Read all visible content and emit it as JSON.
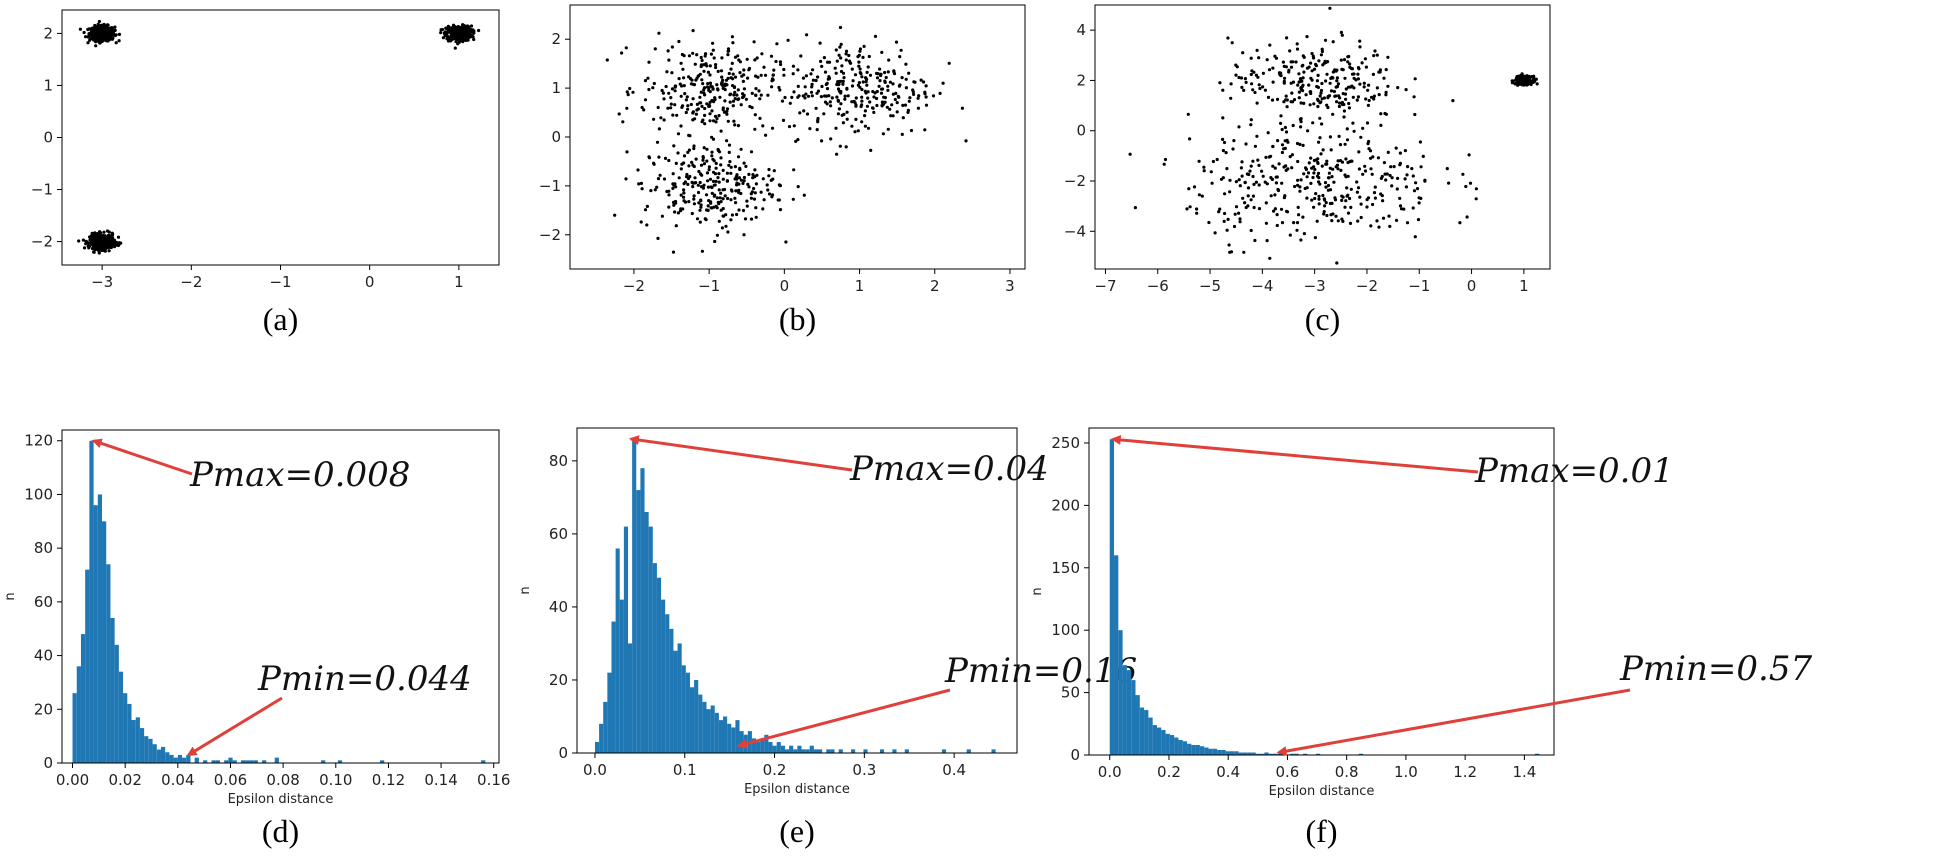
{
  "chart_data": [
    {
      "panel": "(a)",
      "type": "scatter",
      "xlim": [
        -3.45,
        1.45
      ],
      "ylim": [
        -2.45,
        2.45
      ],
      "xticks": [
        "−3",
        "−2",
        "−1",
        "0",
        "1"
      ],
      "xtick_values": [
        -3,
        -2,
        -1,
        0,
        1
      ],
      "yticks": [
        "−2",
        "−1",
        "0",
        "1",
        "2"
      ],
      "ytick_values": [
        -2,
        -1,
        0,
        1,
        2
      ],
      "point_color": "#000000",
      "clusters": [
        {
          "center": [
            -3.0,
            2.0
          ],
          "spread": 0.07,
          "count": 450
        },
        {
          "center": [
            1.0,
            2.0
          ],
          "spread": 0.07,
          "count": 450
        },
        {
          "center": [
            -3.0,
            -2.0
          ],
          "spread": 0.07,
          "count": 450
        }
      ]
    },
    {
      "panel": "(b)",
      "type": "scatter",
      "xlim": [
        -2.85,
        3.2
      ],
      "ylim": [
        -2.7,
        2.7
      ],
      "xticks": [
        "−2",
        "−1",
        "0",
        "1",
        "2",
        "3"
      ],
      "xtick_values": [
        -2,
        -1,
        0,
        1,
        2,
        3
      ],
      "yticks": [
        "−2",
        "−1",
        "0",
        "1",
        "2"
      ],
      "ytick_values": [
        -2,
        -1,
        0,
        1,
        2
      ],
      "point_color": "#000000",
      "clusters": [
        {
          "center": [
            -1.0,
            1.0
          ],
          "spread": 0.45,
          "count": 280
        },
        {
          "center": [
            1.0,
            1.0
          ],
          "spread": 0.5,
          "count": 280
        },
        {
          "center": [
            -1.0,
            -1.0
          ],
          "spread": 0.45,
          "count": 280
        }
      ]
    },
    {
      "panel": "(c)",
      "type": "scatter",
      "xlim": [
        -7.2,
        1.5
      ],
      "ylim": [
        -5.5,
        5.0
      ],
      "xticks": [
        "−7",
        "−6",
        "−5",
        "−4",
        "−3",
        "−2",
        "−1",
        "0",
        "1"
      ],
      "xtick_values": [
        -7,
        -6,
        -5,
        -4,
        -3,
        -2,
        -1,
        0,
        1
      ],
      "yticks": [
        "−4",
        "−2",
        "0",
        "2",
        "4"
      ],
      "ytick_values": [
        -4,
        -2,
        0,
        2,
        4
      ],
      "point_color": "#000000",
      "clusters": [
        {
          "center": [
            -3.0,
            2.0
          ],
          "spread": 0.8,
          "count": 260
        },
        {
          "center": [
            -3.0,
            -2.0
          ],
          "spread": 1.2,
          "count": 380
        },
        {
          "center": [
            1.0,
            2.0
          ],
          "spread": 0.08,
          "count": 300
        }
      ]
    },
    {
      "panel": "(d)",
      "type": "bar",
      "xlabel": "Epsilon distance",
      "ylabel": "n",
      "xlim": [
        -0.004,
        0.162
      ],
      "ylim": [
        0,
        124
      ],
      "bin_start": 0.0,
      "bin_width": 0.0016,
      "xticks": [
        "0.00",
        "0.02",
        "0.04",
        "0.06",
        "0.08",
        "0.10",
        "0.12",
        "0.14",
        "0.16"
      ],
      "xtick_values": [
        0,
        0.02,
        0.04,
        0.06,
        0.08,
        0.1,
        0.12,
        0.14,
        0.16
      ],
      "yticks": [
        "0",
        "20",
        "40",
        "60",
        "80",
        "100",
        "120"
      ],
      "ytick_values": [
        0,
        20,
        40,
        60,
        80,
        100,
        120
      ],
      "bar_color": "#1f77b4",
      "values": [
        26,
        36,
        48,
        72,
        120,
        96,
        100,
        90,
        74,
        54,
        44,
        34,
        26,
        22,
        16,
        17,
        13,
        10,
        9,
        7,
        5,
        6,
        4,
        3,
        2,
        3,
        2,
        3,
        0,
        2,
        0,
        1,
        0,
        1,
        1,
        0,
        1,
        2,
        1,
        0,
        1,
        1,
        1,
        1,
        0,
        1,
        0,
        0,
        2,
        0,
        0,
        0,
        0,
        0,
        0,
        0,
        0,
        0,
        0,
        1,
        0,
        0,
        0,
        1,
        0,
        0,
        0,
        0,
        0,
        0,
        0,
        0,
        0,
        1,
        0,
        0,
        0,
        0,
        0,
        0,
        0,
        0,
        0,
        0,
        0,
        0,
        0,
        0,
        0,
        0,
        0,
        0,
        0,
        0,
        0,
        0,
        0,
        1
      ],
      "annotations": [
        {
          "text": "Pmax=0.008",
          "x": 0.008,
          "y": 120
        },
        {
          "text": "Pmin=0.044",
          "x": 0.044,
          "y": 3
        }
      ]
    },
    {
      "panel": "(e)",
      "type": "bar",
      "xlabel": "Epsilon distance",
      "ylabel": "n",
      "xlim": [
        -0.02,
        0.47
      ],
      "ylim": [
        0,
        89
      ],
      "bin_start": 0.0,
      "bin_width": 0.0046,
      "xticks": [
        "0.0",
        "0.1",
        "0.2",
        "0.3",
        "0.4"
      ],
      "xtick_values": [
        0,
        0.1,
        0.2,
        0.3,
        0.4
      ],
      "yticks": [
        "0",
        "20",
        "40",
        "60",
        "80"
      ],
      "ytick_values": [
        0,
        20,
        40,
        60,
        80
      ],
      "bar_color": "#1f77b4",
      "values": [
        3,
        8,
        14,
        22,
        36,
        56,
        42,
        62,
        30,
        86,
        72,
        78,
        66,
        62,
        52,
        48,
        42,
        38,
        34,
        28,
        30,
        24,
        22,
        18,
        20,
        16,
        14,
        12,
        13,
        11,
        9,
        10,
        8,
        7,
        9,
        6,
        5,
        6,
        4,
        3,
        4,
        5,
        3,
        2,
        3,
        2,
        1,
        2,
        1,
        2,
        1,
        1,
        2,
        1,
        1,
        0,
        1,
        1,
        0,
        1,
        0,
        0,
        1,
        0,
        0,
        1,
        0,
        0,
        0,
        1,
        0,
        0,
        1,
        0,
        0,
        1,
        0,
        0,
        0,
        0,
        0,
        0,
        0,
        0,
        1,
        0,
        0,
        0,
        0,
        0,
        1,
        0,
        0,
        0,
        0,
        0,
        1
      ],
      "annotations": [
        {
          "text": "Pmax=0.04",
          "x": 0.04,
          "y": 86
        },
        {
          "text": "Pmin=0.16",
          "x": 0.16,
          "y": 2
        }
      ]
    },
    {
      "panel": "(f)",
      "type": "bar",
      "xlabel": "Epsilon distance",
      "ylabel": "n",
      "xlim": [
        -0.07,
        1.5
      ],
      "ylim": [
        0,
        262
      ],
      "bin_start": 0.0,
      "bin_width": 0.0145,
      "xticks": [
        "0.0",
        "0.2",
        "0.4",
        "0.6",
        "0.8",
        "1.0",
        "1.2",
        "1.4"
      ],
      "xtick_values": [
        0,
        0.2,
        0.4,
        0.6,
        0.8,
        1.0,
        1.2,
        1.4
      ],
      "yticks": [
        "0",
        "50",
        "100",
        "150",
        "200",
        "250"
      ],
      "ytick_values": [
        0,
        50,
        100,
        150,
        200,
        250
      ],
      "bar_color": "#1f77b4",
      "values": [
        253,
        160,
        100,
        72,
        68,
        60,
        48,
        38,
        36,
        30,
        24,
        22,
        20,
        17,
        16,
        14,
        12,
        11,
        9,
        8,
        8,
        7,
        6,
        5,
        5,
        4,
        4,
        3,
        3,
        3,
        2,
        2,
        2,
        2,
        1,
        1,
        2,
        1,
        1,
        1,
        1,
        0,
        1,
        1,
        0,
        1,
        0,
        0,
        1,
        0,
        0,
        0,
        0,
        0,
        0,
        0,
        0,
        0,
        1,
        0,
        0,
        0,
        0,
        0,
        0,
        0,
        0,
        0,
        0,
        0,
        0,
        0,
        0,
        0,
        0,
        0,
        0,
        0,
        0,
        0,
        0,
        0,
        0,
        0,
        0,
        0,
        0,
        0,
        0,
        0,
        0,
        0,
        0,
        0,
        0,
        0,
        0,
        0,
        0,
        1
      ],
      "annotations": [
        {
          "text": "Pmax=0.01",
          "x": 0.01,
          "y": 253
        },
        {
          "text": "Pmin=0.57",
          "x": 0.57,
          "y": 2
        }
      ]
    }
  ],
  "annotation_color": "#e0403a"
}
